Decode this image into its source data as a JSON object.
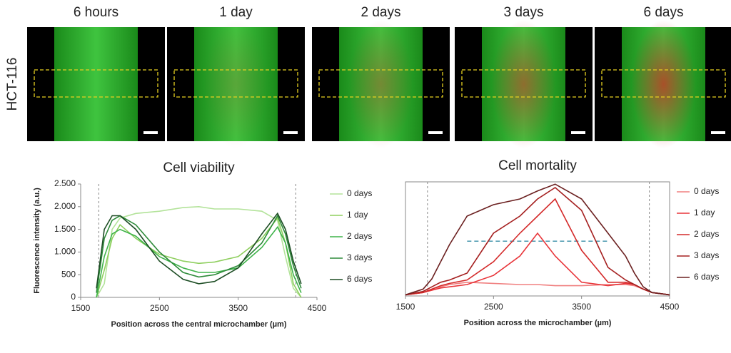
{
  "panels": {
    "row_label": "HCT-116",
    "titles": [
      "6 hours",
      "1 day",
      "2 days",
      "3 days",
      "6 days"
    ]
  },
  "chart_data": [
    {
      "type": "line",
      "title": "Cell viability",
      "x_label": "Position across the central microchamber (µm)",
      "y_label": "Fluorescence intensity (a.u.)",
      "xlim": [
        1500,
        4500
      ],
      "xticks": [
        1500,
        2500,
        3500,
        4500
      ],
      "ylim": [
        0,
        2500
      ],
      "yticks": [
        0,
        500,
        {
          "value": 1000,
          "label": "1.000"
        },
        {
          "value": 1500,
          "label": "1.500"
        },
        {
          "value": 2000,
          "label": "2.000"
        },
        {
          "value": 2500,
          "label": "2.500"
        }
      ],
      "vlines": [
        1730,
        4230
      ],
      "x": [
        1700,
        1800,
        1900,
        2000,
        2200,
        2500,
        2800,
        3000,
        3200,
        3500,
        3800,
        4000,
        4100,
        4200,
        4300
      ],
      "series": [
        {
          "name": "0 days",
          "color": "#b3e39a",
          "values": [
            0,
            300,
            1500,
            1750,
            1850,
            1900,
            1980,
            2000,
            1950,
            1950,
            1900,
            1700,
            900,
            200,
            0
          ]
        },
        {
          "name": "1 day",
          "color": "#8fcf5f",
          "values": [
            0,
            600,
            1300,
            1600,
            1300,
            950,
            800,
            750,
            780,
            900,
            1300,
            1750,
            1200,
            300,
            0
          ]
        },
        {
          "name": "2 days",
          "color": "#3fb34a",
          "values": [
            0,
            900,
            1400,
            1500,
            1350,
            900,
            650,
            550,
            550,
            650,
            1100,
            1550,
            1200,
            500,
            100
          ]
        },
        {
          "name": "3 days",
          "color": "#2e8b3a",
          "values": [
            100,
            1300,
            1700,
            1800,
            1600,
            1000,
            550,
            450,
            500,
            700,
            1200,
            1800,
            1400,
            700,
            200
          ]
        },
        {
          "name": "6 days",
          "color": "#1d4d24",
          "values": [
            200,
            1500,
            1800,
            1800,
            1500,
            800,
            400,
            300,
            350,
            650,
            1400,
            1850,
            1500,
            800,
            300
          ]
        }
      ]
    },
    {
      "type": "line",
      "title": "Cell mortality",
      "x_label": "Position across the microchamber (µm)",
      "box": true,
      "xlim": [
        1500,
        4500
      ],
      "xticks": [
        1500,
        2500,
        3500,
        4500
      ],
      "ylim": [
        0,
        100
      ],
      "vlines": [
        1750,
        4270
      ],
      "hline": {
        "y": 48,
        "x": [
          2200,
          3800
        ]
      },
      "x": [
        1500,
        1700,
        1800,
        1900,
        2000,
        2200,
        2500,
        2800,
        3000,
        3200,
        3500,
        3800,
        4000,
        4100,
        4200,
        4300,
        4500
      ],
      "series": [
        {
          "name": "0 days",
          "color": "#f08080",
          "values": [
            1,
            3,
            6,
            8,
            10,
            12,
            11,
            10,
            10,
            9,
            9,
            10,
            10,
            9,
            6,
            3,
            1
          ]
        },
        {
          "name": "1 day",
          "color": "#e8353a",
          "values": [
            1,
            3,
            5,
            7,
            8,
            10,
            18,
            35,
            55,
            35,
            12,
            9,
            11,
            10,
            6,
            3,
            1
          ]
        },
        {
          "name": "2 days",
          "color": "#d42a2a",
          "values": [
            1,
            3,
            6,
            9,
            11,
            14,
            30,
            55,
            70,
            85,
            40,
            12,
            12,
            10,
            6,
            3,
            1
          ]
        },
        {
          "name": "3 days",
          "color": "#a52020",
          "values": [
            1,
            4,
            8,
            12,
            14,
            20,
            55,
            70,
            85,
            95,
            75,
            25,
            14,
            10,
            6,
            3,
            1
          ]
        },
        {
          "name": "6 days",
          "color": "#6b2020",
          "values": [
            1,
            6,
            15,
            30,
            45,
            70,
            80,
            85,
            92,
            98,
            85,
            55,
            35,
            20,
            8,
            3,
            1
          ]
        }
      ]
    }
  ]
}
